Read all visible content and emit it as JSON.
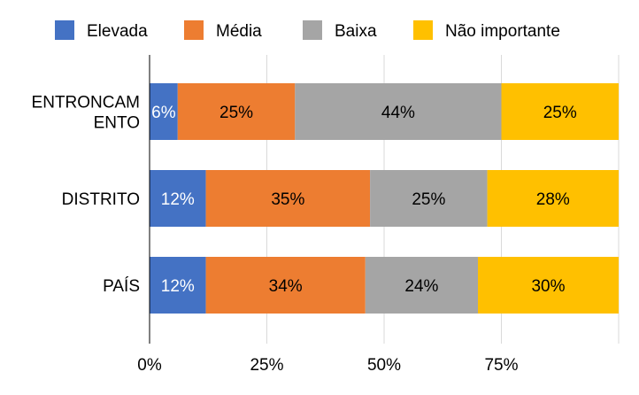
{
  "chart_data": {
    "type": "bar",
    "orientation": "horizontal",
    "stacked": "percent",
    "categories": [
      [
        "ENTRONCAM",
        "ENTO"
      ],
      [
        "DISTRITO"
      ],
      [
        "PAÍS"
      ]
    ],
    "series": [
      {
        "name": "Elevada",
        "color": "#4472C4",
        "values": [
          6,
          12,
          12
        ],
        "labels": [
          "6%",
          "12%",
          "12%"
        ],
        "label_color": "#ffffff"
      },
      {
        "name": "Média",
        "color": "#ED7D31",
        "values": [
          25,
          35,
          34
        ],
        "labels": [
          "25%",
          "35%",
          "34%"
        ],
        "label_color": "#000000"
      },
      {
        "name": "Baixa",
        "color": "#A5A5A5",
        "values": [
          44,
          25,
          24
        ],
        "labels": [
          "44%",
          "25%",
          "24%"
        ],
        "label_color": "#000000"
      },
      {
        "name": "Não importante",
        "color": "#FFC000",
        "values": [
          25,
          28,
          30
        ],
        "labels": [
          "25%",
          "28%",
          "30%"
        ],
        "label_color": "#000000"
      }
    ],
    "x_ticks": [
      "0%",
      "25%",
      "50%",
      "75%"
    ],
    "xlim": [
      0,
      100
    ],
    "grid": true,
    "legend_position": "top"
  }
}
